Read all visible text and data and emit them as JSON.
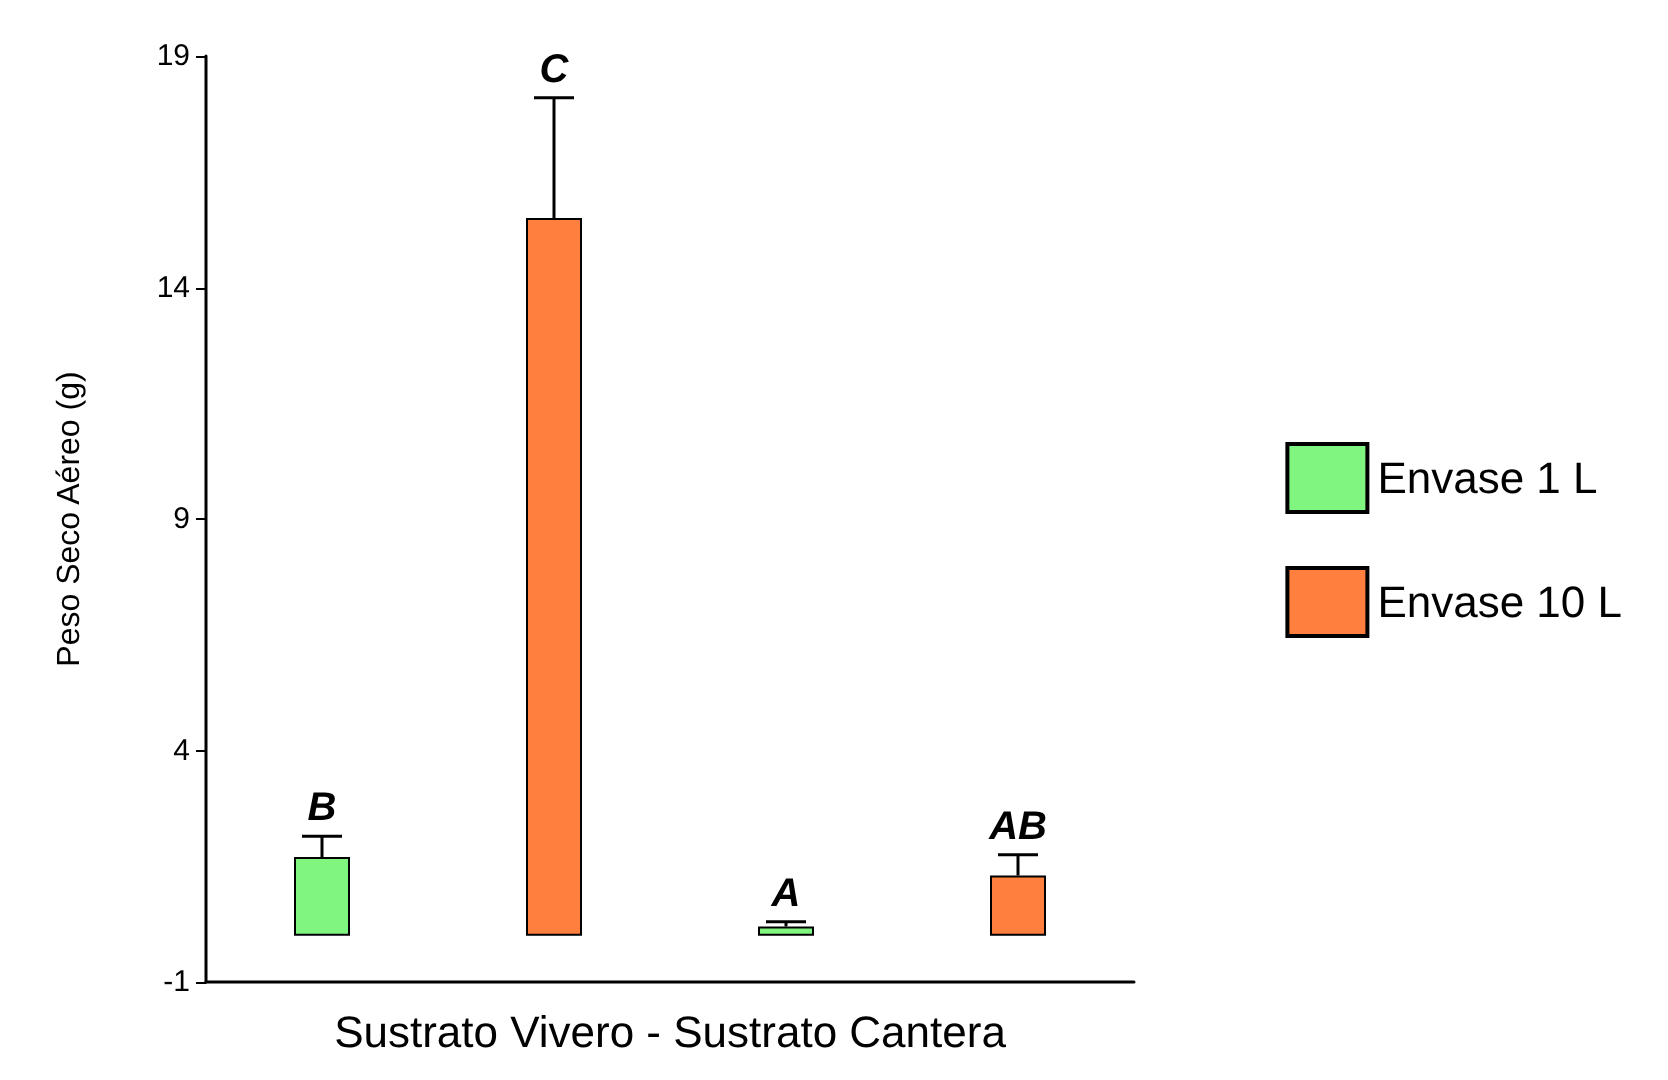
{
  "chart_data": {
    "type": "bar",
    "xlabel": "Sustrato Vivero - Sustrato Cantera",
    "ylabel": "Peso Seco Aéreo (g)",
    "categories": [
      null,
      null,
      null,
      null
    ],
    "series": [
      {
        "name": "Envase 1 L",
        "color": "#80f580",
        "values": [
          1.7,
          null,
          0.2,
          null
        ],
        "errors": [
          0.45,
          null,
          0.1,
          null
        ],
        "value_labels": [
          "B",
          null,
          "A",
          null
        ]
      },
      {
        "name": "Envase 10 L",
        "color": "#ff7f3f",
        "values": [
          null,
          15.5,
          null,
          1.3
        ],
        "errors": [
          null,
          2.6,
          null,
          0.45
        ],
        "value_labels": [
          null,
          "C",
          null,
          "AB"
        ]
      }
    ],
    "ylim": [
      -1,
      19
    ],
    "yticks": [
      -1,
      4,
      9,
      14,
      19
    ],
    "grid": false,
    "legend": "right"
  }
}
